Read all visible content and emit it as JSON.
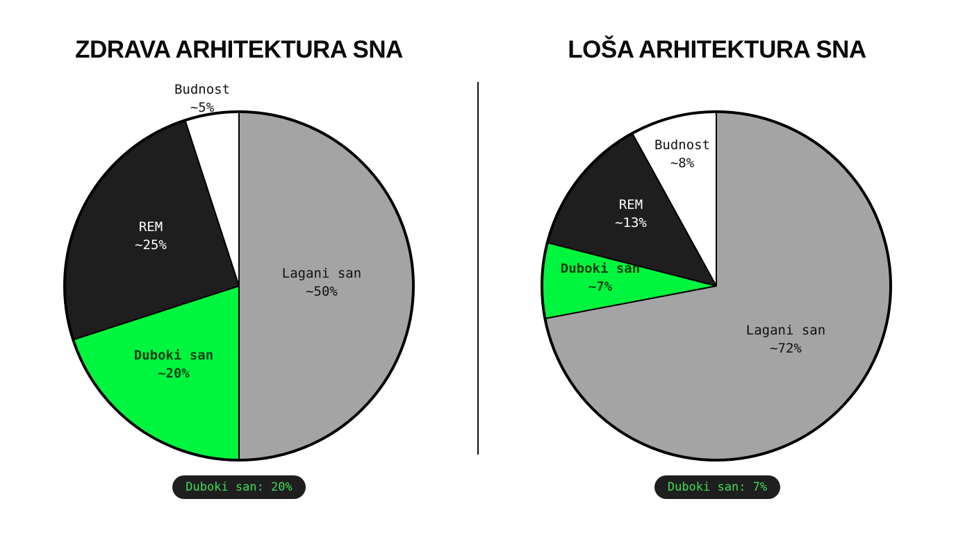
{
  "left": {
    "title": "ZDRAVA ARHITEKTURA SNA",
    "badge": "Duboki san: 20%"
  },
  "right": {
    "title": "LOŠA ARHITEKTURA SNA",
    "badge": "Duboki san: 7%"
  },
  "colors": {
    "lagani": "#a3a4a3",
    "duboki": "#00f63e",
    "rem": "#1e1e1e",
    "budnost": "#ffffff",
    "outline": "#000000",
    "badge_bg": "#1e1e1e",
    "badge_text": "#3ddc5a"
  },
  "chart_data": [
    {
      "type": "pie",
      "title": "ZDRAVA ARHITEKTURA SNA",
      "start": "12 o'clock, slices listed clockwise",
      "slices": [
        {
          "key": "lagani",
          "label": "Lagani san",
          "value_label": "~50%",
          "value": 50
        },
        {
          "key": "duboki",
          "label": "Duboki san",
          "value_label": "~20%",
          "value": 20
        },
        {
          "key": "rem",
          "label": "REM",
          "value_label": "~25%",
          "value": 25
        },
        {
          "key": "budnost",
          "label": "Budnost",
          "value_label": "~5%",
          "value": 5
        }
      ],
      "annotation": "Duboki san: 20%"
    },
    {
      "type": "pie",
      "title": "LOŠA ARHITEKTURA SNA",
      "start": "12 o'clock, slices listed clockwise",
      "slices": [
        {
          "key": "lagani",
          "label": "Lagani san",
          "value_label": "~72%",
          "value": 72
        },
        {
          "key": "duboki",
          "label": "Duboki san",
          "value_label": "~7%",
          "value": 7
        },
        {
          "key": "rem",
          "label": "REM",
          "value_label": "~13%",
          "value": 13
        },
        {
          "key": "budnost",
          "label": "Budnost",
          "value_label": "~8%",
          "value": 8
        }
      ],
      "annotation": "Duboki san: 7%"
    }
  ]
}
